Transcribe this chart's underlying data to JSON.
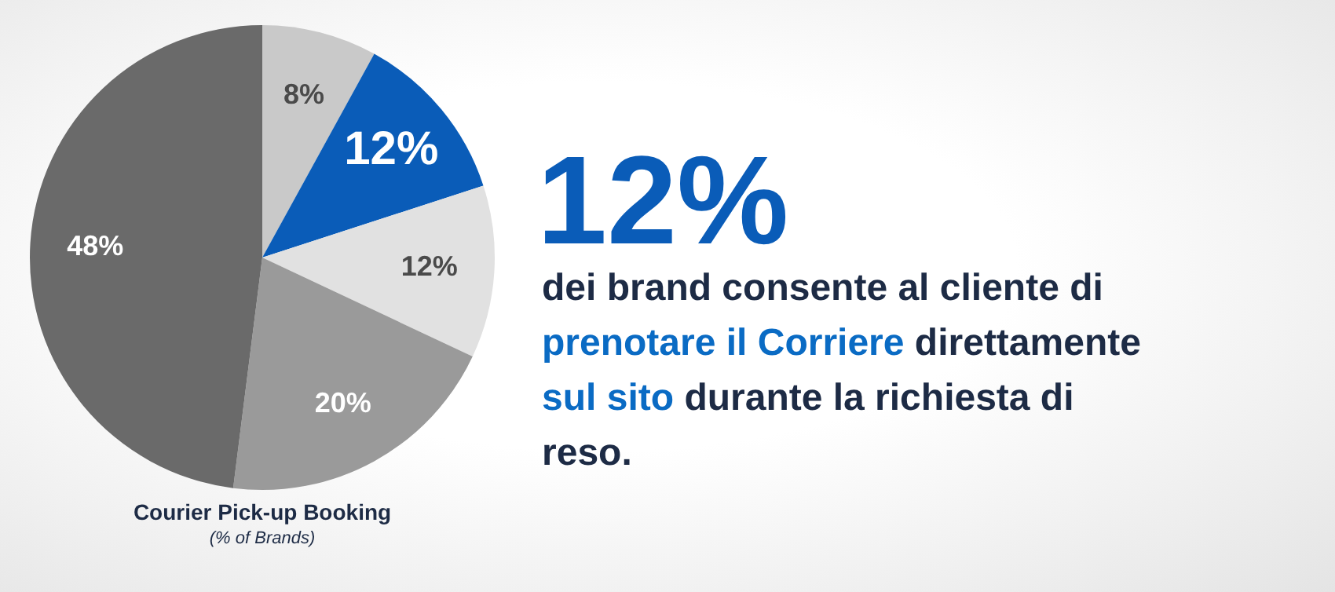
{
  "chart_data": {
    "type": "pie",
    "title": "Courier Pick-up Booking",
    "subtitle": "(% of Brands)",
    "categories": [
      null,
      null,
      null,
      null,
      null
    ],
    "values": [
      8,
      12,
      12,
      20,
      48
    ],
    "colors": [
      "#c9c9c9",
      "#0a5cb8",
      "#e1e1e1",
      "#9a9a9a",
      "#6a6a6a"
    ],
    "value_labels": [
      "8%",
      "12%",
      "12%",
      "20%",
      "48%"
    ],
    "legend": false,
    "annotations": [
      "12%",
      "dei brand consente al cliente di",
      "prenotare il Corriere",
      "direttamente",
      "sul sito",
      "durante la richiesta di reso."
    ]
  }
}
